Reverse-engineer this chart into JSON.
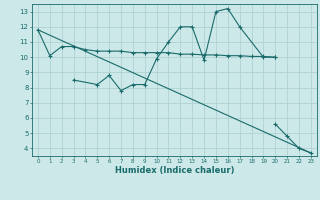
{
  "xlabel": "Humidex (Indice chaleur)",
  "xlim": [
    -0.5,
    23.5
  ],
  "ylim": [
    3.5,
    13.5
  ],
  "background_color": "#cce8e8",
  "grid_color": "#aacece",
  "line_color": "#1a6b6b",
  "series_flat": {
    "x": [
      0,
      1,
      2,
      3,
      4,
      5,
      6,
      7,
      8,
      9,
      10,
      11,
      12,
      13,
      14,
      15,
      16,
      17,
      18,
      19,
      20
    ],
    "y": [
      11.8,
      10.1,
      10.7,
      10.7,
      10.5,
      10.4,
      10.4,
      10.4,
      10.3,
      10.3,
      10.3,
      10.3,
      10.2,
      10.2,
      10.15,
      10.15,
      10.1,
      10.1,
      10.05,
      10.05,
      10.0
    ]
  },
  "series_wavy": {
    "x": [
      3,
      5,
      6,
      7,
      8,
      9,
      10,
      11,
      12,
      13,
      14,
      15,
      16,
      17,
      19,
      20
    ],
    "y": [
      8.5,
      8.2,
      8.8,
      7.8,
      8.2,
      8.2,
      9.9,
      11.0,
      12.0,
      12.0,
      9.8,
      13.0,
      13.2,
      12.0,
      10.0,
      10.0
    ]
  },
  "series_diag": {
    "x": [
      0,
      23
    ],
    "y": [
      11.8,
      3.7
    ]
  },
  "series_lower": {
    "x": [
      20,
      21,
      22,
      23
    ],
    "y": [
      5.6,
      4.8,
      4.0,
      3.7
    ]
  },
  "yticks": [
    4,
    5,
    6,
    7,
    8,
    9,
    10,
    11,
    12,
    13
  ],
  "xticks": [
    0,
    1,
    2,
    3,
    4,
    5,
    6,
    7,
    8,
    9,
    10,
    11,
    12,
    13,
    14,
    15,
    16,
    17,
    18,
    19,
    20,
    21,
    22,
    23
  ]
}
